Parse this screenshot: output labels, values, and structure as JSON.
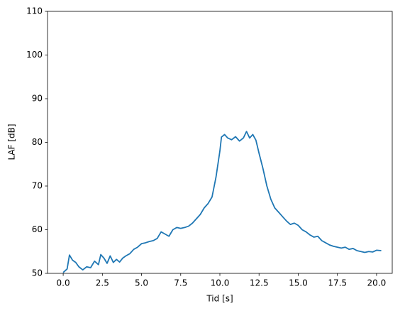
{
  "chart_data": {
    "type": "line",
    "x_label": "Tid [s]",
    "y_label": "LAF [dB]",
    "x": [
      0.0,
      0.25,
      0.4,
      0.6,
      0.8,
      1.0,
      1.25,
      1.5,
      1.75,
      2.0,
      2.25,
      2.4,
      2.6,
      2.8,
      3.0,
      3.2,
      3.4,
      3.6,
      3.8,
      4.0,
      4.25,
      4.5,
      4.75,
      5.0,
      5.25,
      5.5,
      5.75,
      6.0,
      6.25,
      6.5,
      6.75,
      7.0,
      7.25,
      7.5,
      7.75,
      8.0,
      8.25,
      8.5,
      8.75,
      9.0,
      9.25,
      9.5,
      9.75,
      10.0,
      10.1,
      10.3,
      10.5,
      10.75,
      11.0,
      11.25,
      11.5,
      11.7,
      11.9,
      12.1,
      12.3,
      12.5,
      12.75,
      13.0,
      13.25,
      13.5,
      13.75,
      14.0,
      14.25,
      14.5,
      14.75,
      15.0,
      15.25,
      15.5,
      15.75,
      16.0,
      16.25,
      16.5,
      16.75,
      17.0,
      17.25,
      17.5,
      17.75,
      18.0,
      18.25,
      18.5,
      18.75,
      19.0,
      19.25,
      19.5,
      19.75,
      20.0,
      20.3
    ],
    "series": [
      {
        "color": "#1f77b4",
        "values": [
          50.2,
          51,
          54.2,
          53,
          52.5,
          51.5,
          50.8,
          51.5,
          51.3,
          52.8,
          52.0,
          54.3,
          53.5,
          52.3,
          54,
          52.5,
          53.2,
          52.6,
          53.5,
          54,
          54.5,
          55.5,
          56,
          56.8,
          57,
          57.3,
          57.5,
          58,
          59.5,
          59,
          58.5,
          60,
          60.5,
          60.3,
          60.5,
          60.8,
          61.5,
          62.5,
          63.5,
          65,
          66,
          67.5,
          72,
          78,
          81.2,
          81.8,
          81,
          80.6,
          81.3,
          80.3,
          81,
          82.5,
          81,
          81.8,
          80.5,
          77.5,
          74,
          70,
          67,
          65,
          64,
          63,
          62,
          61.2,
          61.5,
          61,
          60,
          59.5,
          58.8,
          58.3,
          58.5,
          57.5,
          57,
          56.5,
          56.2,
          56,
          55.8,
          56,
          55.5,
          55.7,
          55.2,
          55,
          54.8,
          55,
          54.9,
          55.3,
          55.2
        ]
      }
    ],
    "xlim": [
      -1.0,
      21.0
    ],
    "ylim": [
      50,
      110
    ],
    "xticks": [
      {
        "value": 0,
        "label": "0.0"
      },
      2.5,
      {
        "value": 5,
        "label": "5.0"
      },
      7.5,
      {
        "value": 10,
        "label": "10.0"
      },
      12.5,
      {
        "value": 15,
        "label": "15.0"
      },
      17.5,
      {
        "value": 20,
        "label": "20.0"
      }
    ],
    "yticks": [
      50,
      60,
      70,
      80,
      90,
      100,
      110
    ]
  }
}
